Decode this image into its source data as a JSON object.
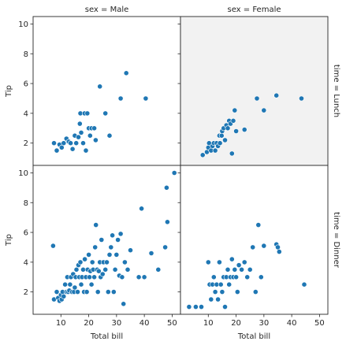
{
  "chart_data": {
    "type": "scatter",
    "point_color": "#1f77b4",
    "highlight_panel_bg": "#f2f2f2",
    "xlabel": "Total bill",
    "ylabel": "Tip",
    "xlim": [
      0,
      53
    ],
    "ylim": [
      0.5,
      10.5
    ],
    "x_ticks": [
      10,
      20,
      30,
      40,
      50
    ],
    "y_ticks": [
      2,
      4,
      6,
      8,
      10
    ],
    "col_titles": [
      "sex = Male",
      "sex = Female"
    ],
    "row_titles": [
      "time = Lunch",
      "time = Dinner"
    ],
    "panels": [
      {
        "row": 0,
        "col": 0,
        "highlighted": false,
        "points": [
          [
            7.5,
            2.0
          ],
          [
            8.5,
            1.5
          ],
          [
            9.5,
            1.9
          ],
          [
            10.3,
            1.7
          ],
          [
            11.0,
            2.0
          ],
          [
            12.0,
            2.3
          ],
          [
            12.8,
            2.1
          ],
          [
            13.5,
            2.0
          ],
          [
            14.2,
            1.6
          ],
          [
            15.0,
            2.5
          ],
          [
            15.5,
            2.0
          ],
          [
            16.3,
            2.4
          ],
          [
            16.8,
            3.3
          ],
          [
            17.0,
            4.0
          ],
          [
            17.3,
            2.7
          ],
          [
            18.0,
            2.0
          ],
          [
            18.5,
            4.0
          ],
          [
            19.0,
            1.5
          ],
          [
            19.5,
            4.0
          ],
          [
            20.0,
            3.0
          ],
          [
            20.5,
            2.5
          ],
          [
            21.0,
            3.0
          ],
          [
            22.0,
            3.0
          ],
          [
            22.5,
            2.2
          ],
          [
            24.0,
            5.8
          ],
          [
            26.0,
            4.0
          ],
          [
            27.5,
            2.5
          ],
          [
            31.5,
            5.0
          ],
          [
            33.5,
            6.7
          ],
          [
            40.5,
            5.0
          ]
        ]
      },
      {
        "row": 0,
        "col": 1,
        "highlighted": true,
        "points": [
          [
            8.0,
            1.2
          ],
          [
            9.5,
            1.4
          ],
          [
            10.0,
            1.7
          ],
          [
            10.3,
            2.0
          ],
          [
            11.0,
            1.5
          ],
          [
            11.5,
            1.8
          ],
          [
            12.0,
            2.0
          ],
          [
            12.5,
            1.5
          ],
          [
            13.0,
            2.0
          ],
          [
            13.5,
            1.8
          ],
          [
            14.0,
            2.5
          ],
          [
            14.2,
            2.0
          ],
          [
            14.8,
            2.5
          ],
          [
            15.0,
            2.8
          ],
          [
            15.5,
            3.0
          ],
          [
            16.0,
            2.2
          ],
          [
            16.5,
            3.2
          ],
          [
            17.0,
            3.0
          ],
          [
            17.5,
            3.5
          ],
          [
            18.0,
            3.3
          ],
          [
            18.5,
            1.3
          ],
          [
            19.0,
            3.5
          ],
          [
            19.5,
            4.2
          ],
          [
            20.0,
            2.8
          ],
          [
            23.0,
            2.9
          ],
          [
            27.5,
            5.0
          ],
          [
            30.0,
            4.2
          ],
          [
            34.5,
            5.2
          ],
          [
            43.5,
            5.0
          ]
        ]
      },
      {
        "row": 1,
        "col": 0,
        "highlighted": false,
        "points": [
          [
            7.2,
            5.1
          ],
          [
            7.5,
            1.5
          ],
          [
            8.5,
            2.0
          ],
          [
            9.0,
            1.6
          ],
          [
            9.5,
            1.4
          ],
          [
            10.0,
            1.8
          ],
          [
            10.3,
            1.5
          ],
          [
            10.6,
            2.0
          ],
          [
            11.0,
            1.7
          ],
          [
            11.5,
            2.5
          ],
          [
            12.0,
            2.0
          ],
          [
            12.3,
            3.0
          ],
          [
            12.6,
            2.0
          ],
          [
            13.0,
            2.1
          ],
          [
            13.3,
            2.5
          ],
          [
            13.6,
            3.0
          ],
          [
            14.0,
            2.0
          ],
          [
            14.4,
            3.2
          ],
          [
            14.7,
            2.0
          ],
          [
            15.0,
            2.3
          ],
          [
            15.3,
            3.0
          ],
          [
            15.6,
            3.5
          ],
          [
            16.0,
            2.0
          ],
          [
            16.3,
            3.8
          ],
          [
            16.6,
            3.0
          ],
          [
            17.0,
            4.0
          ],
          [
            17.3,
            2.5
          ],
          [
            17.6,
            3.0
          ],
          [
            18.0,
            3.5
          ],
          [
            18.3,
            2.0
          ],
          [
            18.6,
            4.2
          ],
          [
            19.0,
            3.0
          ],
          [
            19.3,
            2.0
          ],
          [
            19.6,
            3.5
          ],
          [
            20.0,
            4.5
          ],
          [
            20.3,
            3.0
          ],
          [
            20.6,
            3.4
          ],
          [
            21.0,
            2.5
          ],
          [
            21.3,
            4.0
          ],
          [
            21.6,
            3.5
          ],
          [
            22.0,
            3.0
          ],
          [
            22.3,
            5.0
          ],
          [
            22.6,
            6.5
          ],
          [
            23.0,
            3.5
          ],
          [
            23.3,
            2.0
          ],
          [
            23.6,
            3.4
          ],
          [
            24.0,
            4.0
          ],
          [
            24.3,
            3.0
          ],
          [
            24.6,
            5.5
          ],
          [
            25.0,
            3.2
          ],
          [
            25.3,
            4.0
          ],
          [
            26.0,
            3.5
          ],
          [
            26.5,
            4.0
          ],
          [
            27.0,
            2.0
          ],
          [
            27.5,
            4.5
          ],
          [
            28.0,
            5.0
          ],
          [
            28.5,
            5.8
          ],
          [
            29.0,
            2.0
          ],
          [
            29.5,
            3.5
          ],
          [
            30.0,
            4.5
          ],
          [
            30.5,
            5.5
          ],
          [
            31.0,
            3.1
          ],
          [
            31.5,
            5.9
          ],
          [
            32.0,
            3.0
          ],
          [
            32.5,
            1.2
          ],
          [
            33.0,
            4.0
          ],
          [
            34.0,
            3.5
          ],
          [
            35.0,
            4.8
          ],
          [
            38.0,
            3.0
          ],
          [
            39.0,
            7.6
          ],
          [
            40.0,
            3.0
          ],
          [
            42.5,
            4.6
          ],
          [
            45.0,
            3.5
          ],
          [
            47.5,
            5.0
          ],
          [
            48.0,
            9.0
          ],
          [
            48.3,
            6.7
          ],
          [
            50.8,
            10.0
          ]
        ]
      },
      {
        "row": 1,
        "col": 1,
        "highlighted": false,
        "points": [
          [
            3.1,
            1.0
          ],
          [
            5.5,
            1.0
          ],
          [
            7.5,
            1.0
          ],
          [
            10.0,
            4.0
          ],
          [
            10.5,
            2.5
          ],
          [
            11.0,
            1.5
          ],
          [
            11.5,
            2.5
          ],
          [
            12.0,
            3.0
          ],
          [
            12.5,
            2.0
          ],
          [
            13.0,
            2.5
          ],
          [
            13.5,
            1.5
          ],
          [
            14.0,
            4.0
          ],
          [
            14.5,
            2.5
          ],
          [
            15.0,
            2.0
          ],
          [
            15.5,
            3.0
          ],
          [
            16.0,
            1.0
          ],
          [
            16.5,
            3.0
          ],
          [
            17.0,
            3.5
          ],
          [
            17.5,
            2.5
          ],
          [
            18.0,
            3.0
          ],
          [
            18.5,
            4.2
          ],
          [
            19.0,
            3.0
          ],
          [
            19.5,
            3.5
          ],
          [
            20.0,
            3.0
          ],
          [
            20.5,
            2.0
          ],
          [
            21.0,
            3.8
          ],
          [
            22.0,
            3.5
          ],
          [
            23.0,
            4.0
          ],
          [
            24.0,
            3.0
          ],
          [
            25.0,
            3.5
          ],
          [
            26.0,
            5.0
          ],
          [
            27.0,
            2.0
          ],
          [
            28.0,
            6.5
          ],
          [
            29.0,
            3.0
          ],
          [
            30.0,
            5.1
          ],
          [
            34.5,
            5.2
          ],
          [
            35.0,
            5.0
          ],
          [
            35.5,
            4.7
          ],
          [
            44.5,
            2.5
          ]
        ]
      }
    ]
  }
}
